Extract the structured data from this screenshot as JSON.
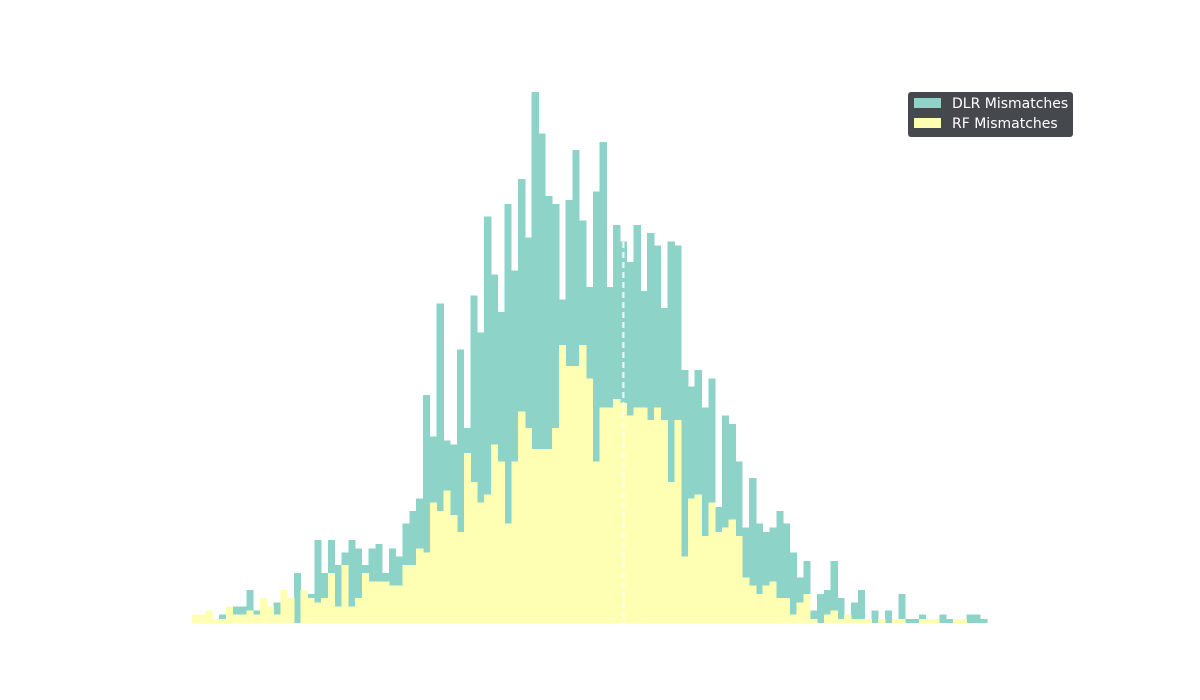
{
  "chart_data": {
    "type": "histogram",
    "title": "",
    "xlabel": "",
    "ylabel": "",
    "x_axis_visible": false,
    "y_axis_visible": false,
    "grid": false,
    "xlim": [
      0,
      126
    ],
    "ylim": [
      0,
      129
    ],
    "bin_width": 1,
    "bin_start": 0,
    "overlay": "overlapping",
    "series": [
      {
        "name": "DLR Mismatches",
        "color": "#8dd3c7",
        "values": [
          0,
          2,
          2,
          1,
          2,
          1,
          4,
          4,
          8,
          3,
          5,
          3,
          5,
          7,
          2,
          12,
          8,
          7,
          20,
          12,
          20,
          14,
          17,
          20,
          18,
          14,
          18,
          19,
          12,
          18,
          16,
          24,
          27,
          30,
          55,
          45,
          77,
          44,
          43,
          66,
          47,
          79,
          70,
          98,
          84,
          75,
          101,
          85,
          107,
          93,
          128,
          118,
          103,
          101,
          78,
          102,
          114,
          97,
          81,
          104,
          116,
          81,
          96,
          92,
          87,
          96,
          80,
          94,
          91,
          76,
          92,
          91,
          61,
          57,
          61,
          52,
          59,
          28,
          50,
          48,
          39,
          23,
          35,
          24,
          22,
          23,
          27,
          24,
          17,
          11,
          15,
          3,
          7,
          8,
          15,
          6,
          2,
          5,
          8,
          1,
          3,
          1,
          3,
          1,
          7,
          1,
          1,
          2,
          1,
          0,
          2,
          1,
          1,
          1,
          2,
          2,
          1
        ],
        "note_values_reproduced": "heights estimated in bar-units from the image"
      },
      {
        "name": "RF Mismatches",
        "color": "#ffffb3",
        "values": [
          2,
          2,
          3,
          1,
          1,
          4,
          2,
          2,
          3,
          2,
          6,
          4,
          2,
          8,
          6,
          0,
          8,
          6,
          5,
          6,
          12,
          4,
          14,
          4,
          6,
          12,
          10,
          10,
          10,
          9,
          9,
          14,
          14,
          18,
          17,
          29,
          27,
          32,
          26,
          22,
          41,
          34,
          29,
          31,
          43,
          39,
          24,
          39,
          51,
          47,
          42,
          42,
          42,
          47,
          67,
          62,
          62,
          67,
          59,
          39,
          52,
          52,
          54,
          53,
          50,
          52,
          52,
          49,
          52,
          49,
          34,
          49,
          16,
          30,
          31,
          21,
          29,
          22,
          23,
          25,
          21,
          11,
          9,
          7,
          9,
          10,
          6,
          6,
          2,
          5,
          7,
          1,
          0,
          2,
          3,
          1,
          2,
          1,
          1,
          1,
          0,
          1,
          0,
          1,
          1,
          0,
          0,
          1,
          1,
          1,
          0,
          0,
          1,
          1
        ],
        "note_values_reproduced": "heights estimated in bar-units from the image"
      }
    ],
    "reference_line": {
      "x": 63.5,
      "style": "dashed",
      "color": "#ffffff"
    },
    "legend": {
      "placement": "top-right",
      "background": "#45494e",
      "entries": [
        "DLR Mismatches",
        "RF Mismatches"
      ]
    }
  }
}
